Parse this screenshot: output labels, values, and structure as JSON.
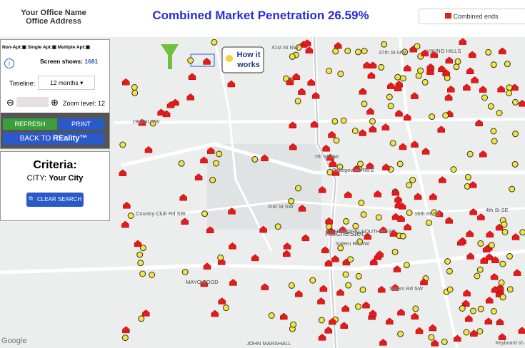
{
  "header": {
    "office_name": "Your Office Name",
    "office_address": "Office Address",
    "title": "Combined Market Penetration 26.59%",
    "legend": "Combined ends"
  },
  "panel": {
    "legend": {
      "non_apt": "Non-Apt:",
      "single_apt": "Single Apt:",
      "multiple_apt": "Multiple Apt:"
    },
    "screen_shows_label": "Screen shows:",
    "screen_shows": 1681,
    "timeline_label": "Timeline:",
    "timeline": "12 months",
    "zoom": "Zoom level: 12",
    "refresh": "REFRESH",
    "print": "PRINT",
    "back_to": "BACK TO",
    "reality": "REality™"
  },
  "criteria": {
    "title": "Criteria:",
    "city_label": "CITY:",
    "city": "Your City",
    "clear": "CLEAR SEARCH"
  },
  "map": {
    "how_it_works": [
      "How it",
      "works"
    ],
    "labels": [
      "19th St NW",
      "Country Club Rd SW",
      "2nd St SW",
      "Rochester",
      "Salem Rd SW",
      "MAYOWOOD",
      "JOHN MARSHALL",
      "7th St NW",
      "Collegeview Rd E",
      "4th St SE",
      "16th St SE",
      "Salem Rd SW",
      "41st St NW",
      "37th St NW",
      "VIKING HILLS",
      "HISTORIC SOUTHWEST"
    ],
    "google": "Google",
    "keyboard": "Keyboard sh"
  }
}
